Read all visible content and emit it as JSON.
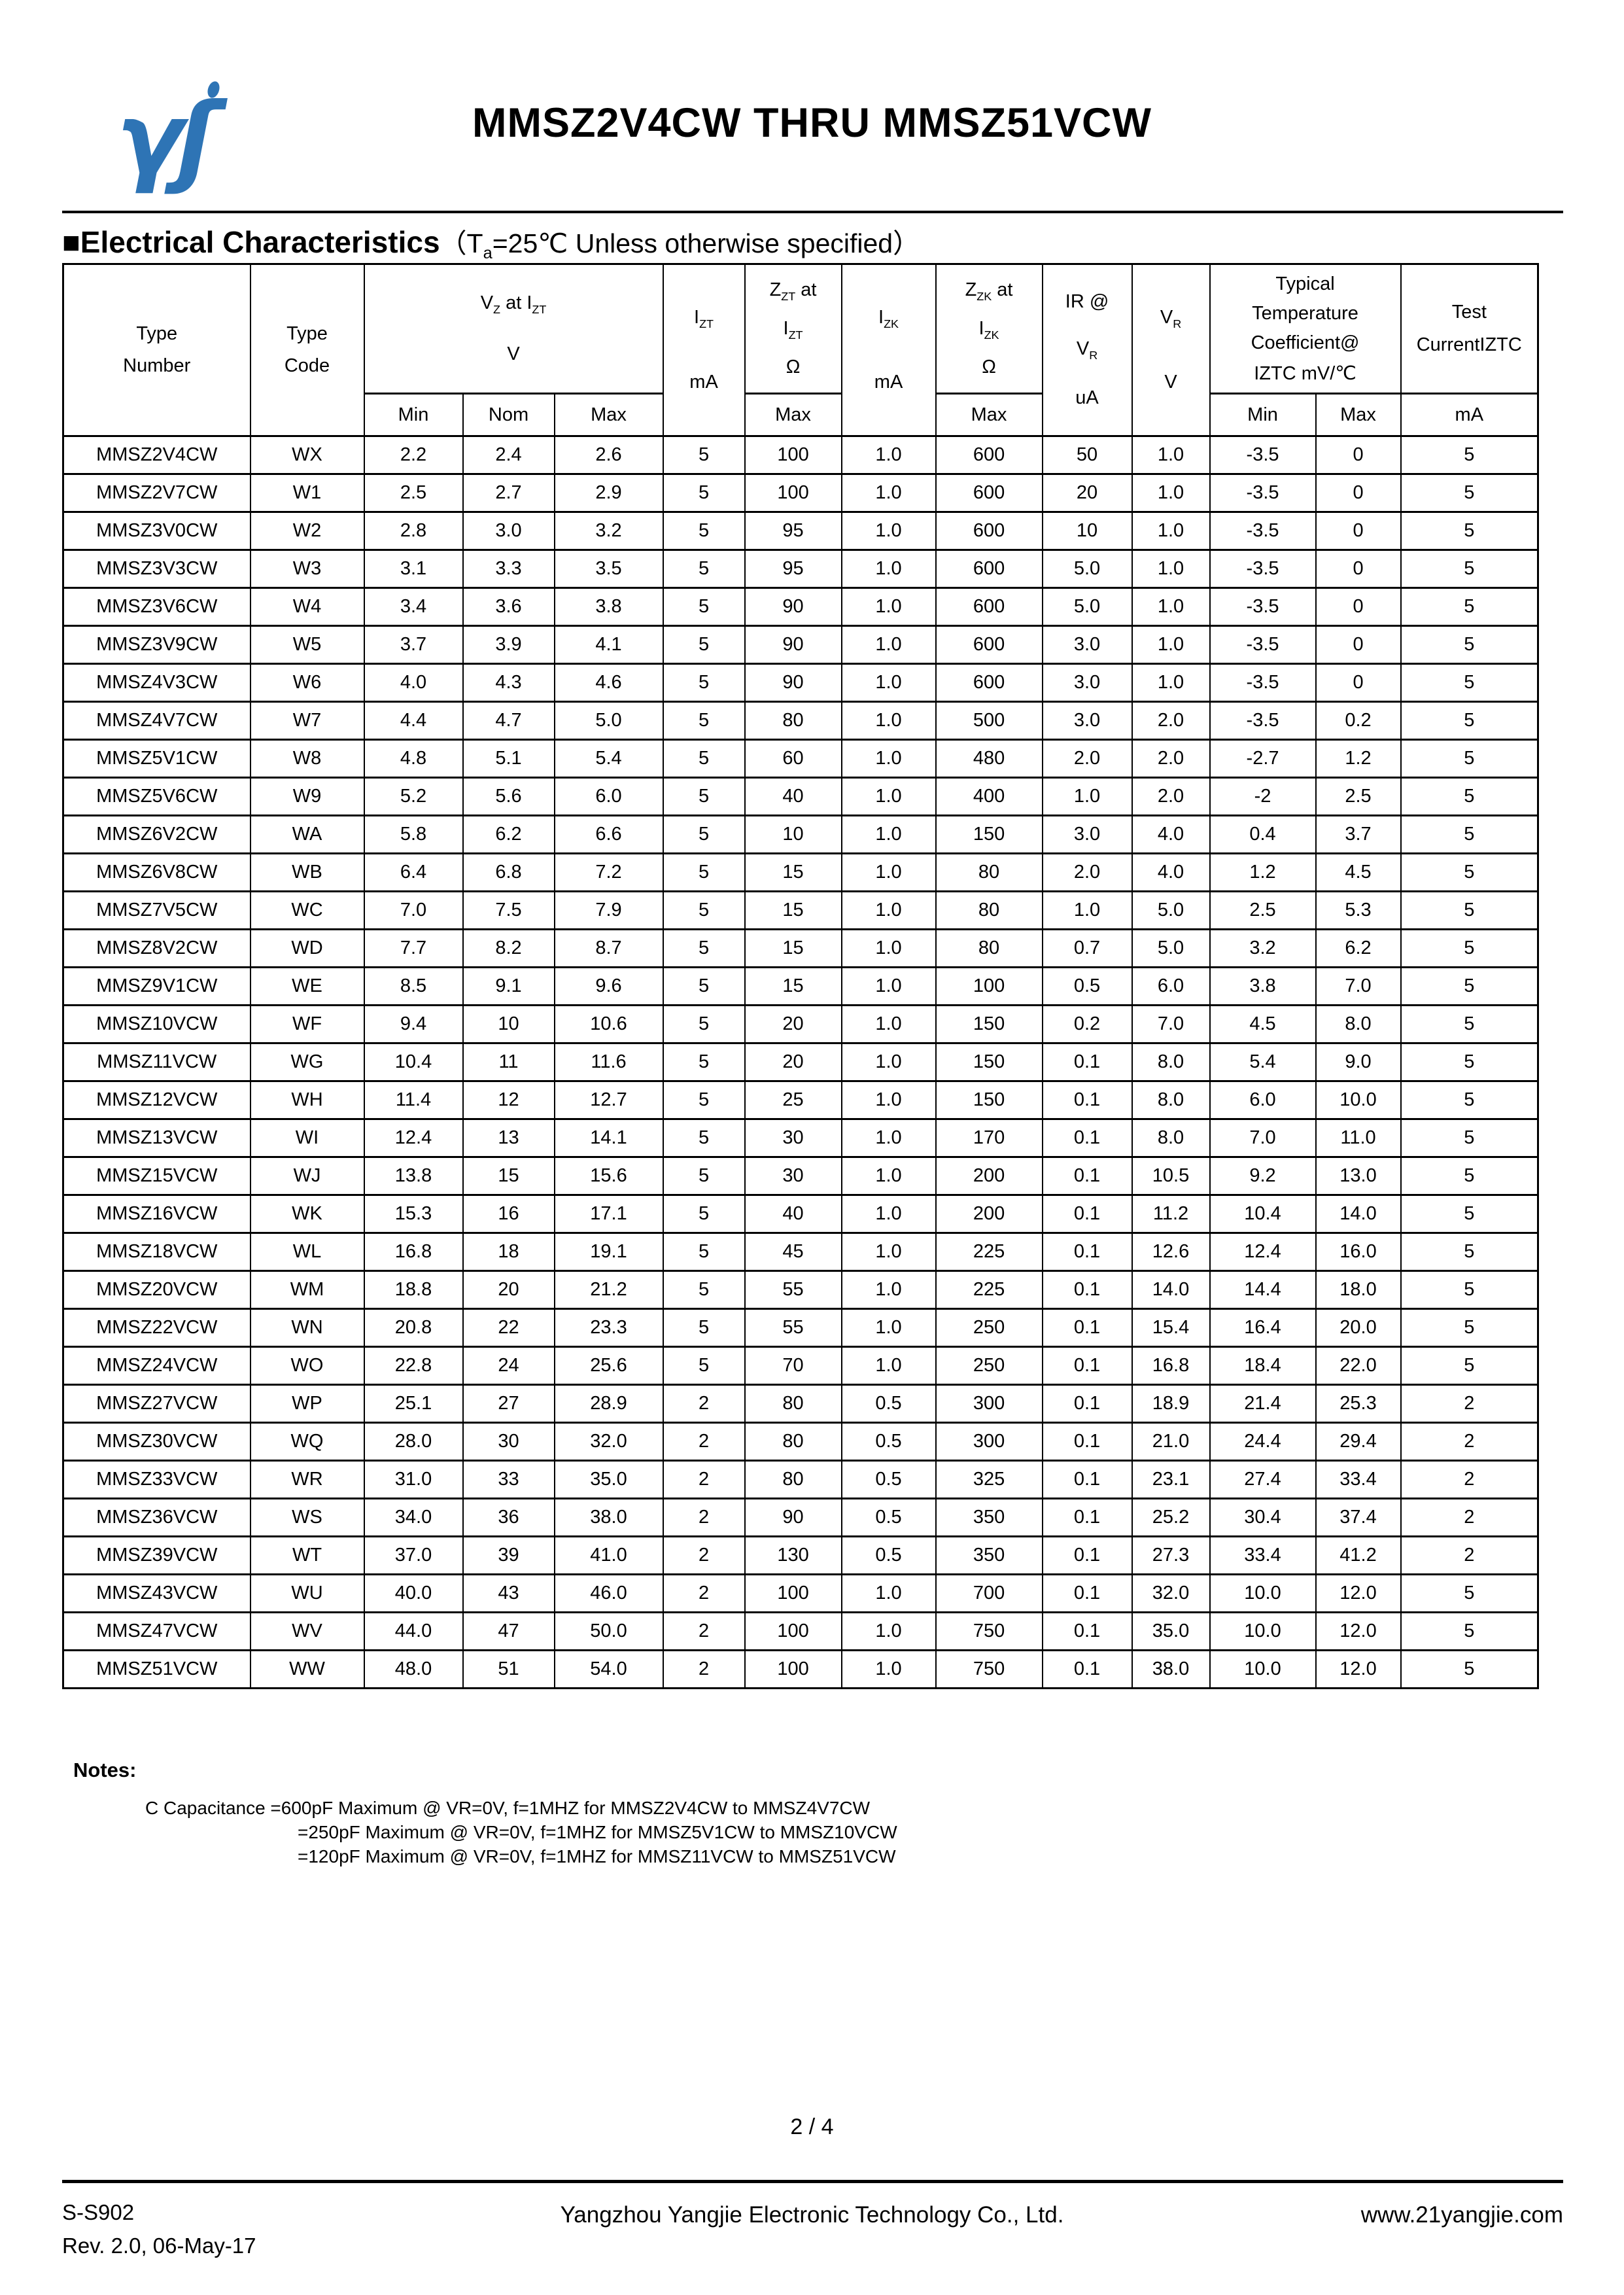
{
  "page": {
    "title": "MMSZ2V4CW THRU MMSZ51VCW",
    "page_number": "2 / 4"
  },
  "logo": {
    "glyphs": "γʃ",
    "color": "#2e74b5"
  },
  "section": {
    "heading": "■Electrical Characteristics",
    "condition": "（T~a~=25℃ Unless otherwise specified）"
  },
  "table": {
    "col_keys": [
      "type_number",
      "type_code",
      "vz_min",
      "vz_nom",
      "vz_max",
      "izt",
      "zzt_max",
      "izk",
      "zzk_max",
      "ir",
      "vr",
      "tc_min",
      "tc_max",
      "test_current"
    ],
    "header": {
      "type_number": [
        "Type",
        "Number"
      ],
      "type_code": [
        "Type",
        "Code"
      ],
      "vz": [
        "V~Z~ at I~ZT~",
        "V"
      ],
      "izt": [
        "I~ZT~",
        "mA"
      ],
      "zzt": [
        "Z~ZT~ at",
        "I~ZT~",
        "Ω"
      ],
      "izk": [
        "I~ZK~",
        "mA"
      ],
      "zzk": [
        "Z~ZK~ at",
        "I~ZK~",
        "Ω"
      ],
      "ir": [
        "IR @",
        "V~R~",
        "uA"
      ],
      "vr": [
        "V~R~",
        "V"
      ],
      "tc": [
        "Typical",
        "Temperature",
        "Coefficient@",
        "IZTC mV/℃"
      ],
      "test": [
        "Test",
        "CurrentIZTC"
      ],
      "sub": {
        "min": "Min",
        "nom": "Nom",
        "max": "Max",
        "tc_min": "Min",
        "tc_max": "Max",
        "ma": "mA"
      }
    },
    "rows": [
      [
        "MMSZ2V4CW",
        "WX",
        "2.2",
        "2.4",
        "2.6",
        "5",
        "100",
        "1.0",
        "600",
        "50",
        "1.0",
        "-3.5",
        "0",
        "5"
      ],
      [
        "MMSZ2V7CW",
        "W1",
        "2.5",
        "2.7",
        "2.9",
        "5",
        "100",
        "1.0",
        "600",
        "20",
        "1.0",
        "-3.5",
        "0",
        "5"
      ],
      [
        "MMSZ3V0CW",
        "W2",
        "2.8",
        "3.0",
        "3.2",
        "5",
        "95",
        "1.0",
        "600",
        "10",
        "1.0",
        "-3.5",
        "0",
        "5"
      ],
      [
        "MMSZ3V3CW",
        "W3",
        "3.1",
        "3.3",
        "3.5",
        "5",
        "95",
        "1.0",
        "600",
        "5.0",
        "1.0",
        "-3.5",
        "0",
        "5"
      ],
      [
        "MMSZ3V6CW",
        "W4",
        "3.4",
        "3.6",
        "3.8",
        "5",
        "90",
        "1.0",
        "600",
        "5.0",
        "1.0",
        "-3.5",
        "0",
        "5"
      ],
      [
        "MMSZ3V9CW",
        "W5",
        "3.7",
        "3.9",
        "4.1",
        "5",
        "90",
        "1.0",
        "600",
        "3.0",
        "1.0",
        "-3.5",
        "0",
        "5"
      ],
      [
        "MMSZ4V3CW",
        "W6",
        "4.0",
        "4.3",
        "4.6",
        "5",
        "90",
        "1.0",
        "600",
        "3.0",
        "1.0",
        "-3.5",
        "0",
        "5"
      ],
      [
        "MMSZ4V7CW",
        "W7",
        "4.4",
        "4.7",
        "5.0",
        "5",
        "80",
        "1.0",
        "500",
        "3.0",
        "2.0",
        "-3.5",
        "0.2",
        "5"
      ],
      [
        "MMSZ5V1CW",
        "W8",
        "4.8",
        "5.1",
        "5.4",
        "5",
        "60",
        "1.0",
        "480",
        "2.0",
        "2.0",
        "-2.7",
        "1.2",
        "5"
      ],
      [
        "MMSZ5V6CW",
        "W9",
        "5.2",
        "5.6",
        "6.0",
        "5",
        "40",
        "1.0",
        "400",
        "1.0",
        "2.0",
        "-2",
        "2.5",
        "5"
      ],
      [
        "MMSZ6V2CW",
        "WA",
        "5.8",
        "6.2",
        "6.6",
        "5",
        "10",
        "1.0",
        "150",
        "3.0",
        "4.0",
        "0.4",
        "3.7",
        "5"
      ],
      [
        "MMSZ6V8CW",
        "WB",
        "6.4",
        "6.8",
        "7.2",
        "5",
        "15",
        "1.0",
        "80",
        "2.0",
        "4.0",
        "1.2",
        "4.5",
        "5"
      ],
      [
        "MMSZ7V5CW",
        "WC",
        "7.0",
        "7.5",
        "7.9",
        "5",
        "15",
        "1.0",
        "80",
        "1.0",
        "5.0",
        "2.5",
        "5.3",
        "5"
      ],
      [
        "MMSZ8V2CW",
        "WD",
        "7.7",
        "8.2",
        "8.7",
        "5",
        "15",
        "1.0",
        "80",
        "0.7",
        "5.0",
        "3.2",
        "6.2",
        "5"
      ],
      [
        "MMSZ9V1CW",
        "WE",
        "8.5",
        "9.1",
        "9.6",
        "5",
        "15",
        "1.0",
        "100",
        "0.5",
        "6.0",
        "3.8",
        "7.0",
        "5"
      ],
      [
        "MMSZ10VCW",
        "WF",
        "9.4",
        "10",
        "10.6",
        "5",
        "20",
        "1.0",
        "150",
        "0.2",
        "7.0",
        "4.5",
        "8.0",
        "5"
      ],
      [
        "MMSZ11VCW",
        "WG",
        "10.4",
        "11",
        "11.6",
        "5",
        "20",
        "1.0",
        "150",
        "0.1",
        "8.0",
        "5.4",
        "9.0",
        "5"
      ],
      [
        "MMSZ12VCW",
        "WH",
        "11.4",
        "12",
        "12.7",
        "5",
        "25",
        "1.0",
        "150",
        "0.1",
        "8.0",
        "6.0",
        "10.0",
        "5"
      ],
      [
        "MMSZ13VCW",
        "WI",
        "12.4",
        "13",
        "14.1",
        "5",
        "30",
        "1.0",
        "170",
        "0.1",
        "8.0",
        "7.0",
        "11.0",
        "5"
      ],
      [
        "MMSZ15VCW",
        "WJ",
        "13.8",
        "15",
        "15.6",
        "5",
        "30",
        "1.0",
        "200",
        "0.1",
        "10.5",
        "9.2",
        "13.0",
        "5"
      ],
      [
        "MMSZ16VCW",
        "WK",
        "15.3",
        "16",
        "17.1",
        "5",
        "40",
        "1.0",
        "200",
        "0.1",
        "11.2",
        "10.4",
        "14.0",
        "5"
      ],
      [
        "MMSZ18VCW",
        "WL",
        "16.8",
        "18",
        "19.1",
        "5",
        "45",
        "1.0",
        "225",
        "0.1",
        "12.6",
        "12.4",
        "16.0",
        "5"
      ],
      [
        "MMSZ20VCW",
        "WM",
        "18.8",
        "20",
        "21.2",
        "5",
        "55",
        "1.0",
        "225",
        "0.1",
        "14.0",
        "14.4",
        "18.0",
        "5"
      ],
      [
        "MMSZ22VCW",
        "WN",
        "20.8",
        "22",
        "23.3",
        "5",
        "55",
        "1.0",
        "250",
        "0.1",
        "15.4",
        "16.4",
        "20.0",
        "5"
      ],
      [
        "MMSZ24VCW",
        "WO",
        "22.8",
        "24",
        "25.6",
        "5",
        "70",
        "1.0",
        "250",
        "0.1",
        "16.8",
        "18.4",
        "22.0",
        "5"
      ],
      [
        "MMSZ27VCW",
        "WP",
        "25.1",
        "27",
        "28.9",
        "2",
        "80",
        "0.5",
        "300",
        "0.1",
        "18.9",
        "21.4",
        "25.3",
        "2"
      ],
      [
        "MMSZ30VCW",
        "WQ",
        "28.0",
        "30",
        "32.0",
        "2",
        "80",
        "0.5",
        "300",
        "0.1",
        "21.0",
        "24.4",
        "29.4",
        "2"
      ],
      [
        "MMSZ33VCW",
        "WR",
        "31.0",
        "33",
        "35.0",
        "2",
        "80",
        "0.5",
        "325",
        "0.1",
        "23.1",
        "27.4",
        "33.4",
        "2"
      ],
      [
        "MMSZ36VCW",
        "WS",
        "34.0",
        "36",
        "38.0",
        "2",
        "90",
        "0.5",
        "350",
        "0.1",
        "25.2",
        "30.4",
        "37.4",
        "2"
      ],
      [
        "MMSZ39VCW",
        "WT",
        "37.0",
        "39",
        "41.0",
        "2",
        "130",
        "0.5",
        "350",
        "0.1",
        "27.3",
        "33.4",
        "41.2",
        "2"
      ],
      [
        "MMSZ43VCW",
        "WU",
        "40.0",
        "43",
        "46.0",
        "2",
        "100",
        "1.0",
        "700",
        "0.1",
        "32.0",
        "10.0",
        "12.0",
        "5"
      ],
      [
        "MMSZ47VCW",
        "WV",
        "44.0",
        "47",
        "50.0",
        "2",
        "100",
        "1.0",
        "750",
        "0.1",
        "35.0",
        "10.0",
        "12.0",
        "5"
      ],
      [
        "MMSZ51VCW",
        "WW",
        "48.0",
        "51",
        "54.0",
        "2",
        "100",
        "1.0",
        "750",
        "0.1",
        "38.0",
        "10.0",
        "12.0",
        "5"
      ]
    ]
  },
  "notes": {
    "label": "Notes:",
    "line1": "C  Capacitance =600pF Maximum @ VR=0V, f=1MHZ for MMSZ2V4CW to MMSZ4V7CW",
    "line2": "=250pF Maximum @ VR=0V, f=1MHZ for MMSZ5V1CW to MMSZ10VCW",
    "line3": "=120pF Maximum @ VR=0V, f=1MHZ for MMSZ11VCW to MMSZ51VCW"
  },
  "footer": {
    "doc_code": "S-S902",
    "revision": "Rev. 2.0, 06-May-17",
    "company": "Yangzhou Yangjie Electronic Technology Co., Ltd.",
    "website": "www.21yangjie.com"
  }
}
